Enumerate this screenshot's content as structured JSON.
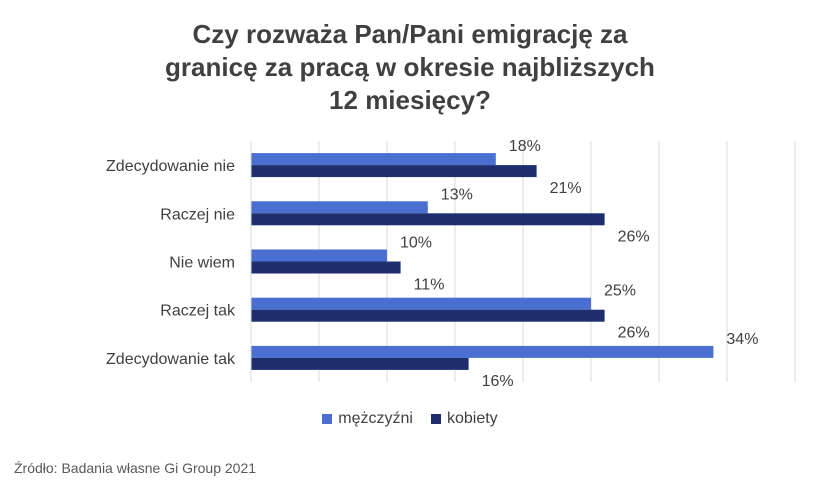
{
  "chart_data": {
    "type": "bar",
    "orientation": "horizontal",
    "title_lines": [
      "Czy rozważa Pan/Pani emigrację za",
      "granicę za pracą w okresie najbliższych",
      "12 miesięcy?"
    ],
    "categories": [
      "Zdecydowanie nie",
      "Raczej nie",
      "Nie wiem",
      "Raczej tak",
      "Zdecydowanie tak"
    ],
    "series": [
      {
        "name": "mężczyźni",
        "color": "#4a6fd1",
        "values": [
          18,
          13,
          10,
          25,
          34
        ],
        "labels": [
          "18%",
          "13%",
          "10%",
          "25%",
          "34%"
        ]
      },
      {
        "name": "kobiety",
        "color": "#1f2e6e",
        "values": [
          21,
          26,
          11,
          26,
          16
        ],
        "labels": [
          "21%",
          "26%",
          "11%",
          "26%",
          "16%"
        ]
      }
    ],
    "value_unit": "%",
    "xlim": [
      0,
      40
    ],
    "grid": true,
    "legend_position": "bottom",
    "source": "Źródło: Badania własne Gi Group 2021"
  }
}
